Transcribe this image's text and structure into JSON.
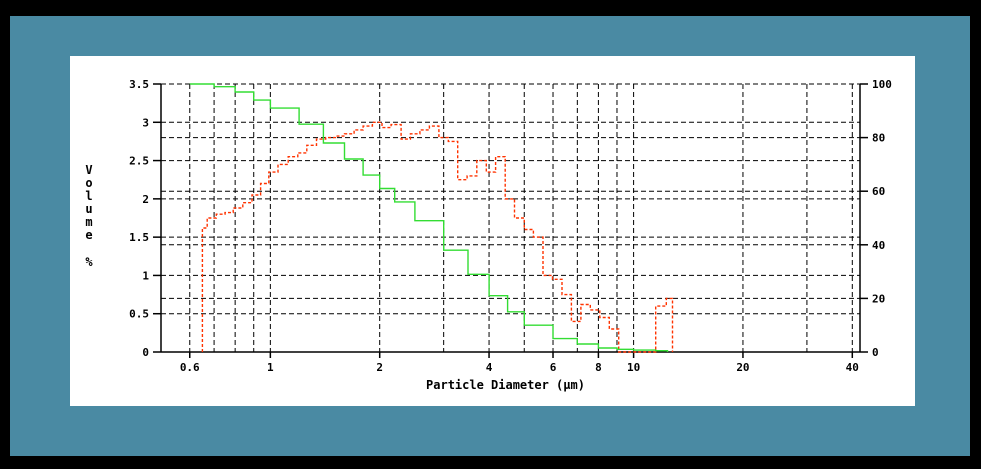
{
  "chart_data": {
    "type": "line",
    "xlabel": "Particle Diameter (µm)",
    "ylabel_left": "Volume %",
    "x_scale": "log",
    "xlim": [
      0.5,
      42
    ],
    "ylim_left": [
      0,
      3.5
    ],
    "ylim_right": [
      0,
      100
    ],
    "x_ticks": [
      {
        "value": 0.6,
        "label": "0.6"
      },
      {
        "value": 1,
        "label": "1"
      },
      {
        "value": 2,
        "label": "2"
      },
      {
        "value": 4,
        "label": "4"
      },
      {
        "value": 6,
        "label": "6"
      },
      {
        "value": 8,
        "label": "8"
      },
      {
        "value": 10,
        "label": "10"
      },
      {
        "value": 20,
        "label": "20"
      },
      {
        "value": 40,
        "label": "40"
      }
    ],
    "x_minor_ticks": [
      0.7,
      0.8,
      0.9,
      3,
      5,
      7,
      9,
      30
    ],
    "y_left_ticks": [
      {
        "value": 0,
        "label": "0"
      },
      {
        "value": 0.5,
        "label": "0.5"
      },
      {
        "value": 1,
        "label": "1"
      },
      {
        "value": 1.5,
        "label": "1.5"
      },
      {
        "value": 2,
        "label": "2"
      },
      {
        "value": 2.5,
        "label": "2.5"
      },
      {
        "value": 3,
        "label": "3"
      },
      {
        "value": 3.5,
        "label": "3.5"
      }
    ],
    "y_right_ticks": [
      {
        "value": 0,
        "label": "0"
      },
      {
        "value": 20,
        "label": "20"
      },
      {
        "value": 40,
        "label": "40"
      },
      {
        "value": 60,
        "label": "60"
      },
      {
        "value": 80,
        "label": "80"
      },
      {
        "value": 100,
        "label": "100"
      }
    ],
    "grid": true,
    "series": [
      {
        "axis": "left",
        "color": "#ff3300",
        "style": "dashed-step",
        "points": [
          [
            0.65,
            0
          ],
          [
            0.65,
            1.62
          ],
          [
            0.67,
            1.75
          ],
          [
            0.71,
            1.8
          ],
          [
            0.75,
            1.82
          ],
          [
            0.79,
            1.88
          ],
          [
            0.84,
            1.95
          ],
          [
            0.89,
            2.05
          ],
          [
            0.94,
            2.2
          ],
          [
            0.99,
            2.35
          ],
          [
            1.05,
            2.45
          ],
          [
            1.12,
            2.55
          ],
          [
            1.19,
            2.6
          ],
          [
            1.26,
            2.7
          ],
          [
            1.34,
            2.78
          ],
          [
            1.42,
            2.8
          ],
          [
            1.51,
            2.82
          ],
          [
            1.6,
            2.85
          ],
          [
            1.7,
            2.9
          ],
          [
            1.8,
            2.95
          ],
          [
            1.91,
            3.0
          ],
          [
            2.03,
            2.93
          ],
          [
            2.15,
            2.97
          ],
          [
            2.29,
            2.78
          ],
          [
            2.43,
            2.85
          ],
          [
            2.58,
            2.9
          ],
          [
            2.74,
            2.95
          ],
          [
            2.91,
            2.8
          ],
          [
            3.09,
            2.75
          ],
          [
            3.28,
            2.25
          ],
          [
            3.48,
            2.3
          ],
          [
            3.7,
            2.5
          ],
          [
            3.93,
            2.35
          ],
          [
            4.17,
            2.55
          ],
          [
            4.43,
            2.0
          ],
          [
            4.7,
            1.75
          ],
          [
            5.0,
            1.6
          ],
          [
            5.3,
            1.5
          ],
          [
            5.63,
            1.0
          ],
          [
            5.98,
            0.95
          ],
          [
            6.35,
            0.75
          ],
          [
            6.74,
            0.4
          ],
          [
            7.16,
            0.62
          ],
          [
            7.6,
            0.55
          ],
          [
            8.07,
            0.45
          ],
          [
            8.57,
            0.3
          ],
          [
            9.1,
            0.0
          ],
          [
            11.5,
            0.0
          ],
          [
            11.5,
            0.6
          ],
          [
            12.3,
            0.7
          ],
          [
            12.8,
            0.0
          ]
        ]
      },
      {
        "axis": "right",
        "color": "#33dd33",
        "style": "solid-step",
        "points": [
          [
            0.6,
            100
          ],
          [
            0.7,
            99
          ],
          [
            0.8,
            97
          ],
          [
            0.9,
            94
          ],
          [
            1.0,
            91
          ],
          [
            1.2,
            85
          ],
          [
            1.4,
            78
          ],
          [
            1.6,
            72
          ],
          [
            1.8,
            66
          ],
          [
            2.0,
            61
          ],
          [
            2.2,
            56
          ],
          [
            2.5,
            49
          ],
          [
            3.0,
            38
          ],
          [
            3.5,
            29
          ],
          [
            4.0,
            21
          ],
          [
            4.5,
            15
          ],
          [
            5.0,
            10
          ],
          [
            6.0,
            5
          ],
          [
            7.0,
            3
          ],
          [
            8.0,
            1.5
          ],
          [
            9.0,
            1
          ],
          [
            10.0,
            0.7
          ],
          [
            11.5,
            0.5
          ],
          [
            12.4,
            0
          ]
        ]
      }
    ]
  }
}
